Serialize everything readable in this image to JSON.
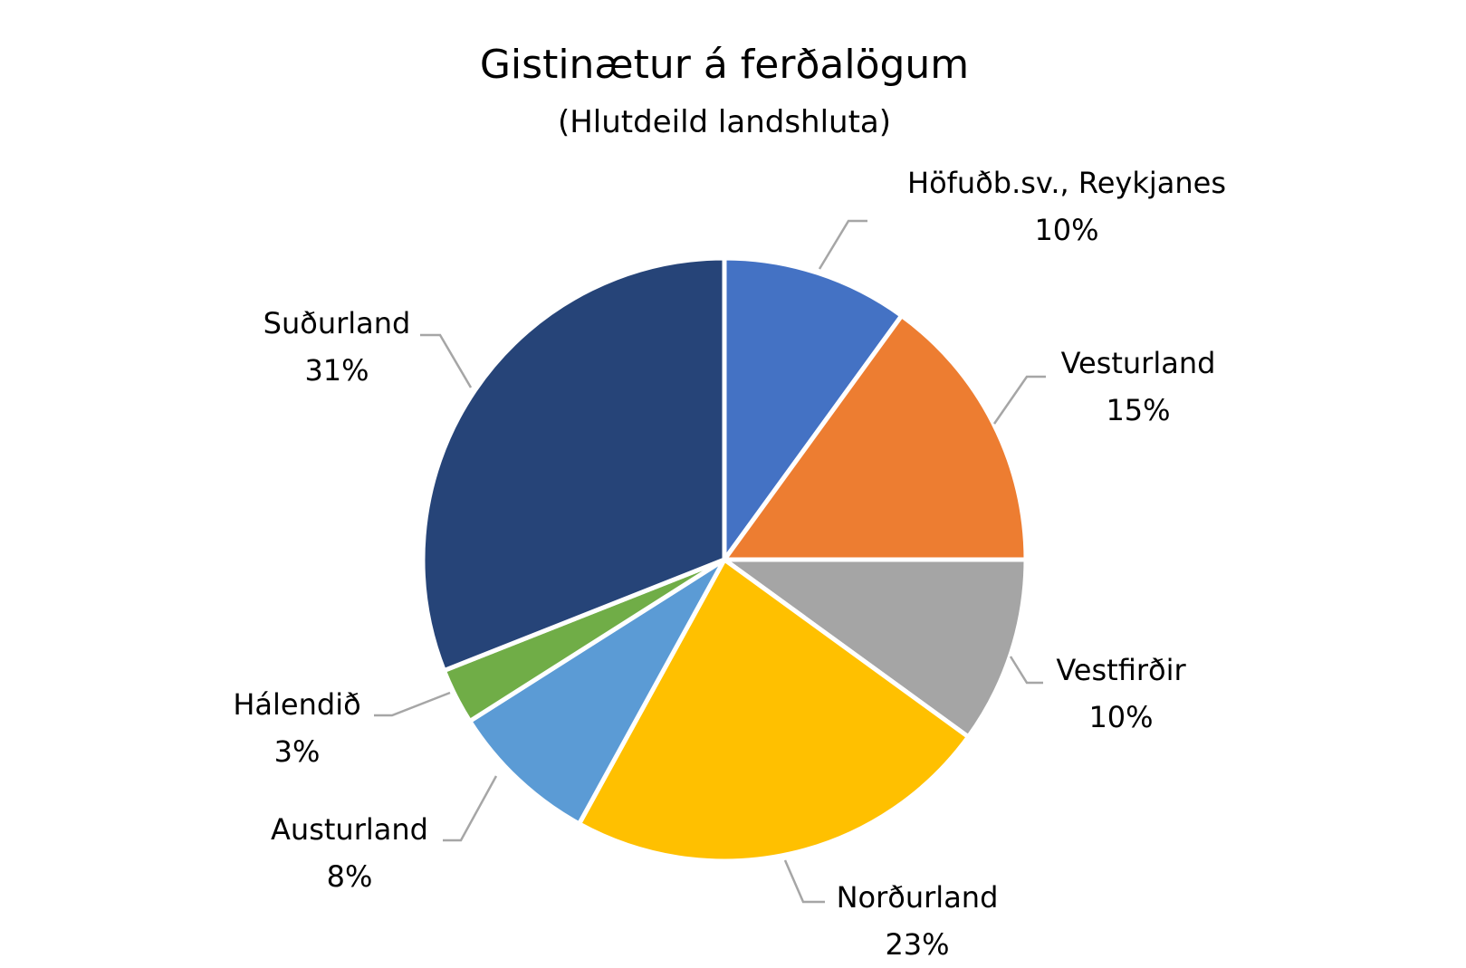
{
  "chart_data": {
    "type": "pie",
    "title": "Gistinætur á ferðalögum",
    "subtitle": "(Hlutdeild landshluta)",
    "unit": "%",
    "slices": [
      {
        "name": "Höfuðb.sv., Reykjanes",
        "value": 10,
        "label": "10%",
        "color": "#4472C4"
      },
      {
        "name": "Vesturland",
        "value": 15,
        "label": "15%",
        "color": "#ED7D31"
      },
      {
        "name": "Vestfirðir",
        "value": 10,
        "label": "10%",
        "color": "#A5A5A5"
      },
      {
        "name": "Norðurland",
        "value": 23,
        "label": "23%",
        "color": "#FFC000"
      },
      {
        "name": "Austurland",
        "value": 8,
        "label": "8%",
        "color": "#5B9BD5"
      },
      {
        "name": "Hálendið",
        "value": 3,
        "label": "3%",
        "color": "#70AD47"
      },
      {
        "name": "Suðurland",
        "value": 31,
        "label": "31%",
        "color": "#264478"
      }
    ],
    "legend": "none",
    "data_labels": "outside-with-leader-lines"
  }
}
